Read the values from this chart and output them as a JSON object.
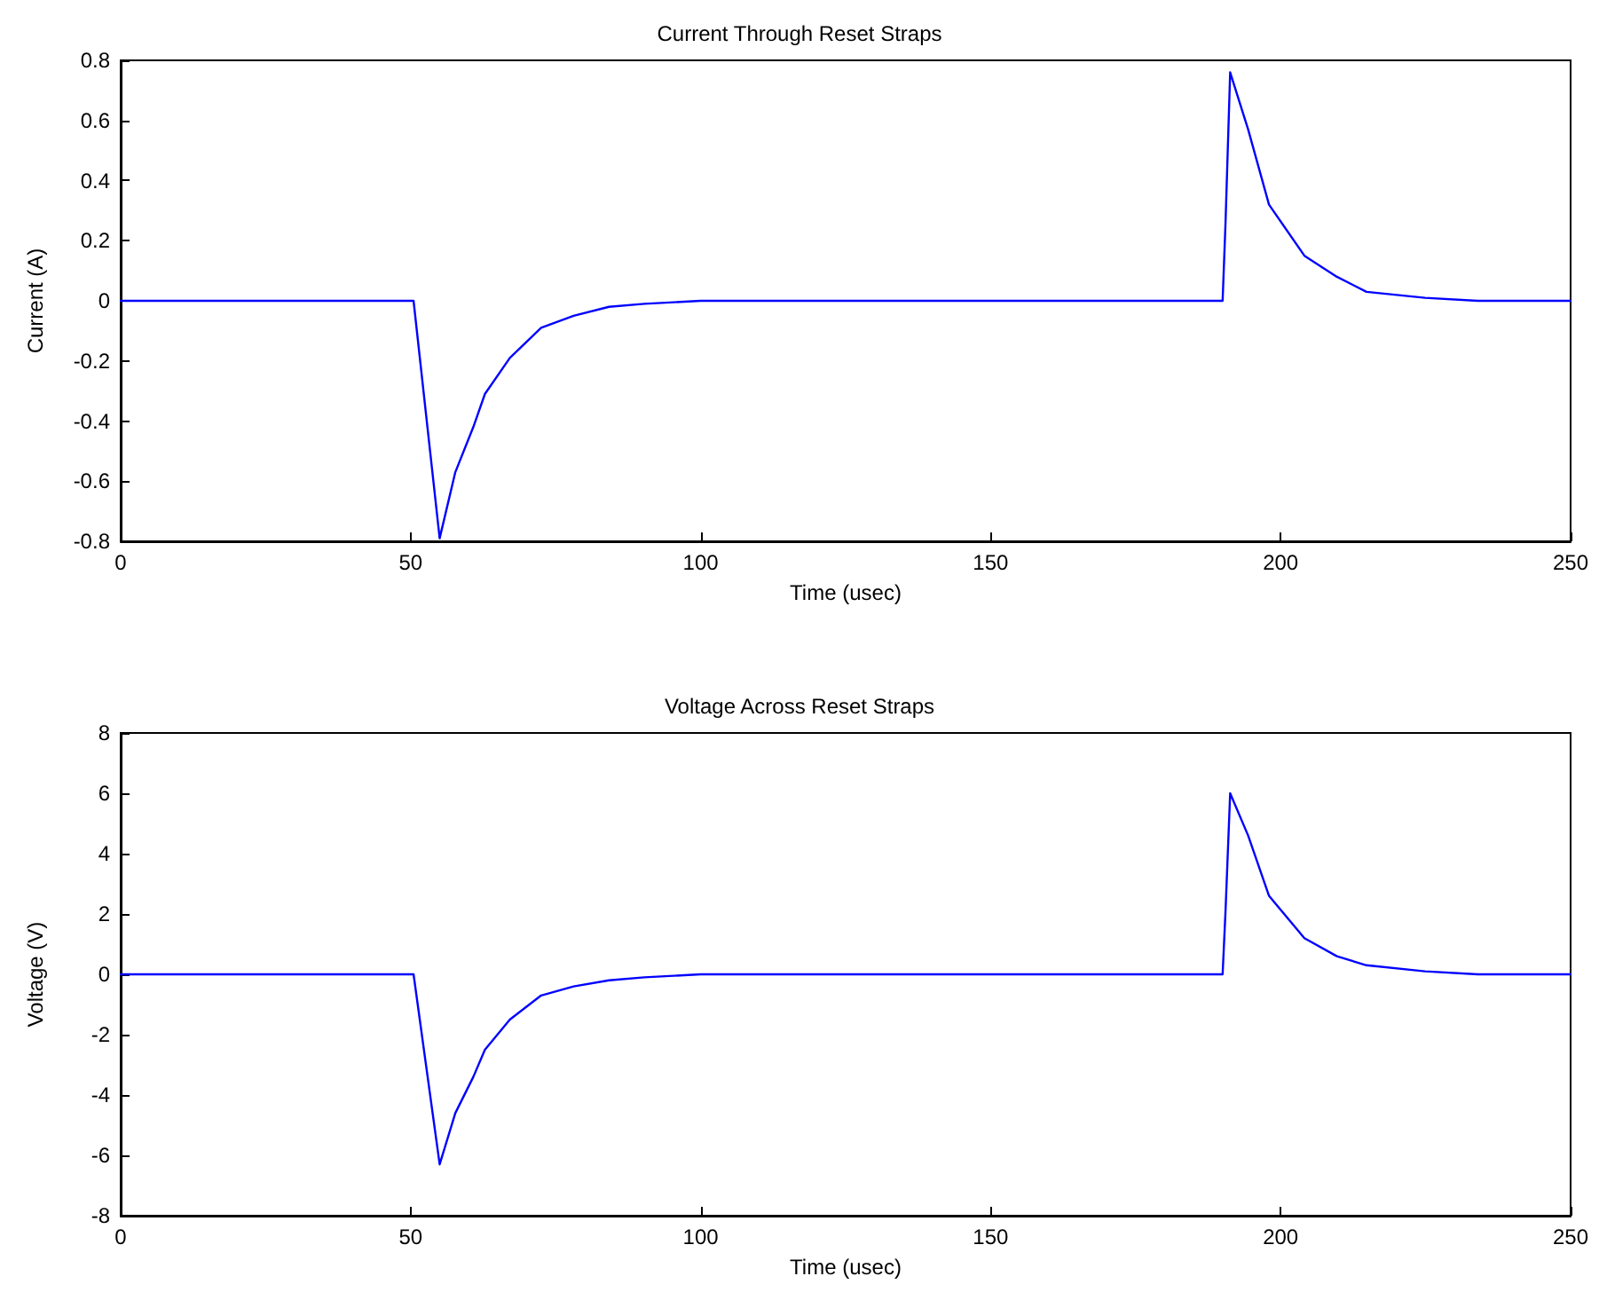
{
  "chart_data": [
    {
      "type": "line",
      "title": "Current Through Reset Straps",
      "xlabel": "Time (usec)",
      "ylabel": "Current (A)",
      "x": [
        0,
        50.5,
        55,
        57.7,
        60.8,
        62.8,
        67.1,
        72.5,
        78.1,
        84.2,
        90.3,
        100,
        190,
        190.5,
        191.3,
        194.4,
        198,
        204.1,
        209.7,
        214.8,
        224.9,
        234,
        250
      ],
      "series": [
        {
          "color": "#0000ff",
          "values": [
            0,
            0,
            -0.79,
            -0.57,
            -0.42,
            -0.31,
            -0.19,
            -0.09,
            -0.05,
            -0.02,
            -0.01,
            0,
            0,
            0.26,
            0.76,
            0.57,
            0.32,
            0.15,
            0.08,
            0.03,
            0.01,
            0,
            0
          ]
        }
      ],
      "xlim": [
        0,
        250
      ],
      "xticks": [
        0,
        50,
        100,
        150,
        200,
        250
      ],
      "ylim": [
        -0.8,
        0.8
      ],
      "yticks": [
        -0.8,
        -0.6,
        -0.4,
        -0.2,
        0,
        0.2,
        0.4,
        0.6,
        0.8
      ],
      "grid": false,
      "marker": "none",
      "line_style": "solid"
    },
    {
      "type": "line",
      "title": "Voltage Across Reset Straps",
      "xlabel": "Time (usec)",
      "ylabel": "Voltage (V)",
      "x": [
        0,
        50.5,
        55,
        57.7,
        60.8,
        62.8,
        67.1,
        72.5,
        78.1,
        84.2,
        90.3,
        100,
        190,
        190.5,
        191.3,
        194.4,
        198,
        204.1,
        209.7,
        214.8,
        224.9,
        234,
        250
      ],
      "series": [
        {
          "color": "#0000ff",
          "values": [
            0,
            0,
            -6.3,
            -4.6,
            -3.4,
            -2.5,
            -1.5,
            -0.7,
            -0.4,
            -0.2,
            -0.1,
            0,
            0,
            2.1,
            6.0,
            4.6,
            2.6,
            1.2,
            0.6,
            0.3,
            0.1,
            0,
            0
          ]
        }
      ],
      "xlim": [
        0,
        250
      ],
      "xticks": [
        0,
        50,
        100,
        150,
        200,
        250
      ],
      "ylim": [
        -8,
        8
      ],
      "yticks": [
        -8,
        -6,
        -4,
        -2,
        0,
        2,
        4,
        6,
        8
      ],
      "grid": false,
      "marker": "none",
      "line_style": "solid"
    }
  ]
}
